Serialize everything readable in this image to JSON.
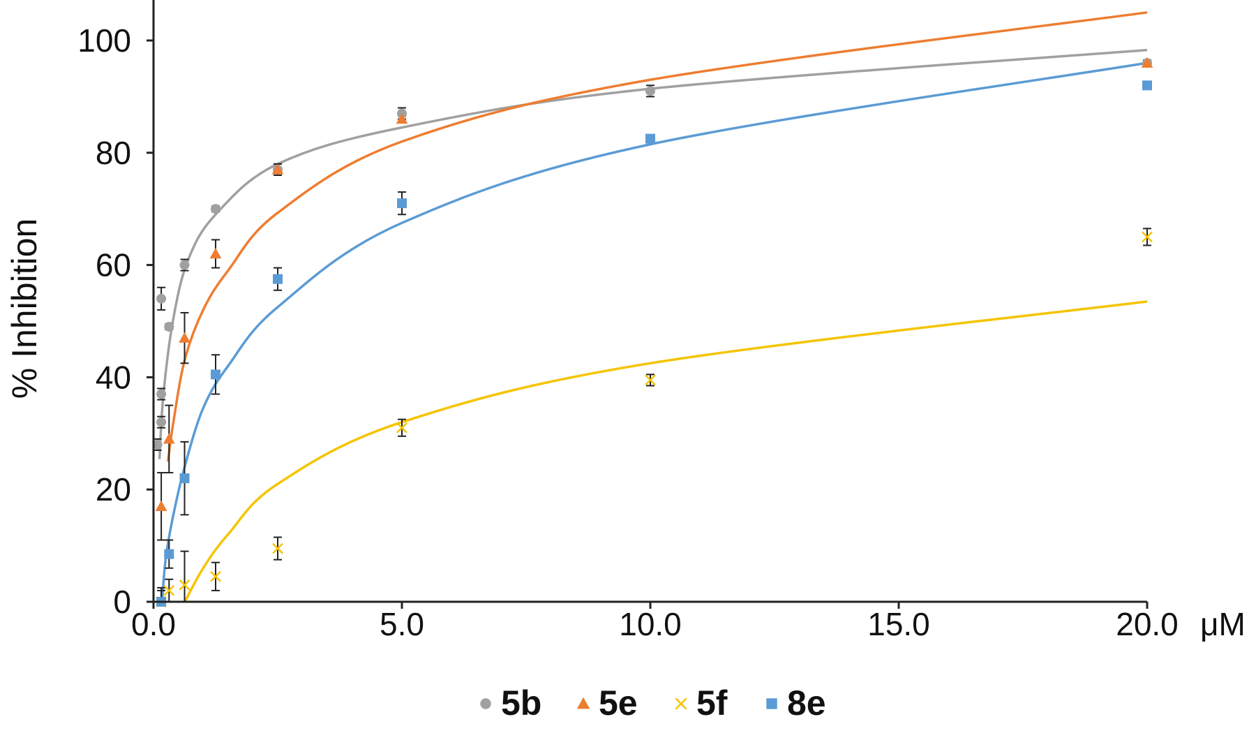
{
  "chart_data": {
    "type": "scatter",
    "title": "",
    "xlabel": "",
    "ylabel": "% Inhibition",
    "x_unit": "μM",
    "xlim": [
      0,
      20
    ],
    "ylim": [
      0,
      100
    ],
    "x_ticks": [
      "0.0",
      "5.0",
      "10.0",
      "15.0",
      "20.0"
    ],
    "y_ticks": [
      "0",
      "20",
      "40",
      "60",
      "80",
      "100"
    ],
    "grid": false,
    "legend_position": "bottom",
    "trendline": "logarithmic",
    "series": [
      {
        "name": "5b",
        "color": "#a0a0a0",
        "marker": "circle",
        "x": [
          0.078,
          0.156,
          0.156,
          0.156,
          0.313,
          0.625,
          1.25,
          2.5,
          5,
          10,
          20
        ],
        "y": [
          28,
          32,
          37,
          54,
          49,
          60,
          70,
          77,
          87,
          91,
          96
        ],
        "err": [
          1,
          1,
          1,
          2,
          0.5,
          1,
          0.5,
          1,
          1,
          1,
          0.5
        ],
        "fit_curve": {
          "x": [
            0.12,
            0.2,
            0.4,
            0.7,
            1.25,
            2.5,
            5,
            10,
            20
          ],
          "y": [
            25.4,
            37,
            50.5,
            61,
            69,
            78,
            84.5,
            91.4,
            98.3
          ]
        }
      },
      {
        "name": "5e",
        "color": "#ed7d31",
        "marker": "triangle",
        "x": [
          0.156,
          0.313,
          0.625,
          1.25,
          2.5,
          5,
          20
        ],
        "y": [
          17,
          29,
          47,
          62,
          77,
          86,
          96
        ],
        "err": [
          6,
          6,
          4.5,
          2.5,
          1,
          0.5,
          0.5
        ],
        "fit_curve": {
          "x": [
            0.29,
            0.4,
            0.625,
            1,
            1.5,
            2.5,
            5,
            10,
            20
          ],
          "y": [
            25,
            32,
            43,
            52,
            59,
            69.3,
            82,
            93,
            105
          ]
        }
      },
      {
        "name": "5f",
        "color": "#f5c400",
        "marker": "x",
        "x": [
          0.156,
          0.313,
          0.625,
          1.25,
          2.5,
          5,
          10,
          20
        ],
        "y": [
          0,
          2,
          3,
          4.5,
          9.5,
          31,
          39.5,
          65
        ],
        "err": [
          2,
          2,
          6,
          2.5,
          2,
          1.5,
          1,
          1.5
        ],
        "fit_curve": {
          "x": [
            0.63,
            1,
            1.5,
            2.5,
            5,
            10,
            20
          ],
          "y": [
            0,
            6,
            12,
            21,
            32,
            42.5,
            53.5
          ]
        }
      },
      {
        "name": "8e",
        "color": "#5b9bd5",
        "marker": "square",
        "x": [
          0.156,
          0.313,
          0.625,
          1.25,
          2.5,
          5,
          10,
          20
        ],
        "y": [
          0,
          8.5,
          22,
          40.5,
          57.5,
          71,
          82.5,
          92
        ],
        "err": [
          2.5,
          2.5,
          6.5,
          3.5,
          2,
          2,
          0.5,
          0.5
        ],
        "fit_curve": {
          "x": [
            0.17,
            0.25,
            0.4,
            0.625,
            1,
            1.5,
            2.5,
            5,
            10,
            20
          ],
          "y": [
            0,
            8,
            15.5,
            24,
            34.5,
            42,
            52.5,
            67.5,
            81.5,
            96
          ]
        }
      }
    ]
  }
}
